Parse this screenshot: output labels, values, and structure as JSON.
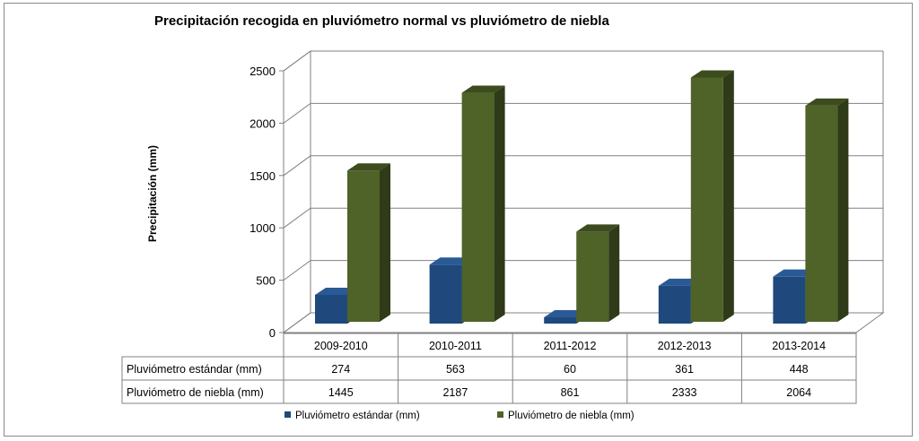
{
  "chart_data": {
    "type": "bar",
    "title": "Precipitación recogida en pluviómetro normal vs pluviómetro de niebla",
    "xlabel": "",
    "ylabel": "Precipitación (mm)",
    "ylim": [
      0,
      2500
    ],
    "yticks": [
      0,
      500,
      1000,
      1500,
      2000,
      2500
    ],
    "categories": [
      "2009-2010",
      "2010-2011",
      "2011-2012",
      "2012-2013",
      "2013-2014"
    ],
    "series": [
      {
        "name": "Pluviómetro estándar (mm)",
        "values": [
          274,
          563,
          60,
          361,
          448
        ],
        "color": "#1f497d",
        "side_color": "#132c4b",
        "top_color": "#2a5a96"
      },
      {
        "name": "Pluviómetro de niebla (mm)",
        "values": [
          1445,
          2187,
          861,
          2333,
          2064
        ],
        "color": "#4f6228",
        "side_color": "#2f3a18",
        "top_color": "#3c4c1e"
      }
    ],
    "grid": true,
    "style": "3d-column",
    "data_table": true,
    "legend_position": "bottom"
  }
}
